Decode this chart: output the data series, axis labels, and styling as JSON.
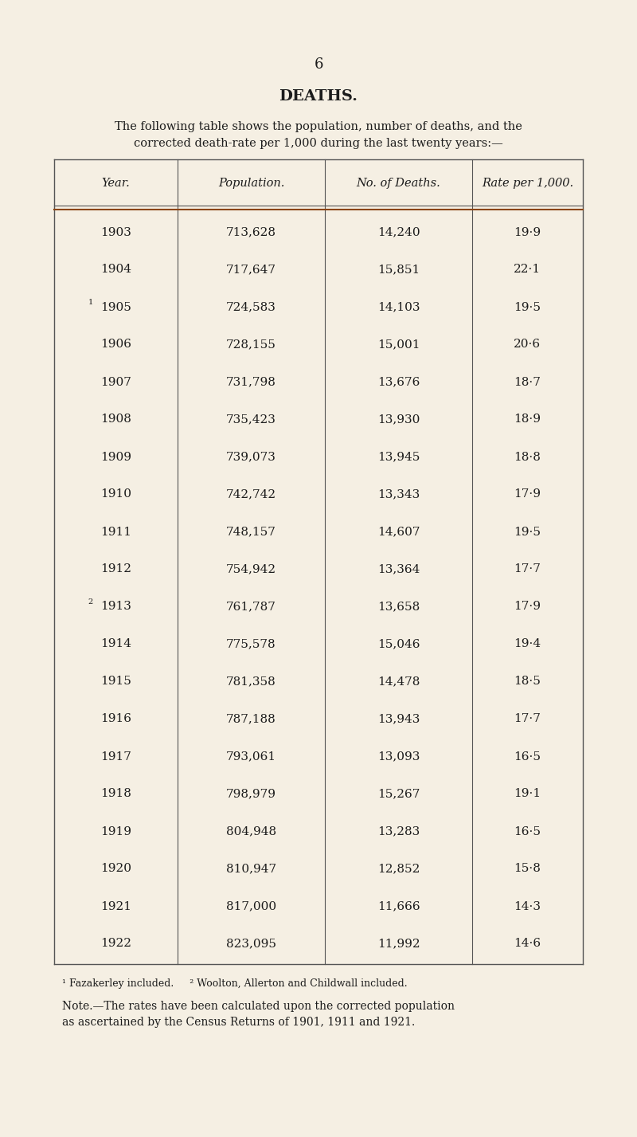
{
  "page_number": "6",
  "title": "DEATHS.",
  "intro_line1": "The following table shows the population, number of deaths, and the",
  "intro_line2": "corrected death-rate per 1,000 during the last twenty years:—",
  "col_headers": [
    "Year.",
    "Population.",
    "No. of Deaths.",
    "Rate per 1,000."
  ],
  "rows": [
    {
      "year": "1903",
      "superscript": "",
      "population": "713,628",
      "deaths": "14,240",
      "rate": "19·9"
    },
    {
      "year": "1904",
      "superscript": "",
      "population": "717,647",
      "deaths": "15,851",
      "rate": "22·1"
    },
    {
      "year": "1905",
      "superscript": "1",
      "population": "724,583",
      "deaths": "14,103",
      "rate": "19·5"
    },
    {
      "year": "1906",
      "superscript": "",
      "population": "728,155",
      "deaths": "15,001",
      "rate": "20·6"
    },
    {
      "year": "1907",
      "superscript": "",
      "population": "731,798",
      "deaths": "13,676",
      "rate": "18·7"
    },
    {
      "year": "1908",
      "superscript": "",
      "population": "735,423",
      "deaths": "13,930",
      "rate": "18·9"
    },
    {
      "year": "1909",
      "superscript": "",
      "population": "739,073",
      "deaths": "13,945",
      "rate": "18·8"
    },
    {
      "year": "1910",
      "superscript": "",
      "population": "742,742",
      "deaths": "13,343",
      "rate": "17·9"
    },
    {
      "year": "1911",
      "superscript": "",
      "population": "748,157",
      "deaths": "14,607",
      "rate": "19·5"
    },
    {
      "year": "1912",
      "superscript": "",
      "population": "754,942",
      "deaths": "13,364",
      "rate": "17·7"
    },
    {
      "year": "1913",
      "superscript": "2",
      "population": "761,787",
      "deaths": "13,658",
      "rate": "17·9"
    },
    {
      "year": "1914",
      "superscript": "",
      "population": "775,578",
      "deaths": "15,046",
      "rate": "19·4"
    },
    {
      "year": "1915",
      "superscript": "",
      "population": "781,358",
      "deaths": "14,478",
      "rate": "18·5"
    },
    {
      "year": "1916",
      "superscript": "",
      "population": "787,188",
      "deaths": "13,943",
      "rate": "17·7"
    },
    {
      "year": "1917",
      "superscript": "",
      "population": "793,061",
      "deaths": "13,093",
      "rate": "16·5"
    },
    {
      "year": "1918",
      "superscript": "",
      "population": "798,979",
      "deaths": "15,267",
      "rate": "19·1"
    },
    {
      "year": "1919",
      "superscript": "",
      "population": "804,948",
      "deaths": "13,283",
      "rate": "16·5"
    },
    {
      "year": "1920",
      "superscript": "",
      "population": "810,947",
      "deaths": "12,852",
      "rate": "15·8"
    },
    {
      "year": "1921",
      "superscript": "",
      "population": "817,000",
      "deaths": "11,666",
      "rate": "14·3"
    },
    {
      "year": "1922",
      "superscript": "",
      "population": "823,095",
      "deaths": "11,992",
      "rate": "14·6"
    }
  ],
  "footnote_line": "¹ Fazakerley included.     ² Woolton, Allerton and Childwall included.",
  "note_line1": "Note.—The rates have been calculated upon the corrected population",
  "note_line2": "as ascertained by the Census Returns of 1901, 1911 and 1921.",
  "bg_color": "#f5efe3",
  "text_color": "#1c1c1c",
  "line_color": "#555555"
}
